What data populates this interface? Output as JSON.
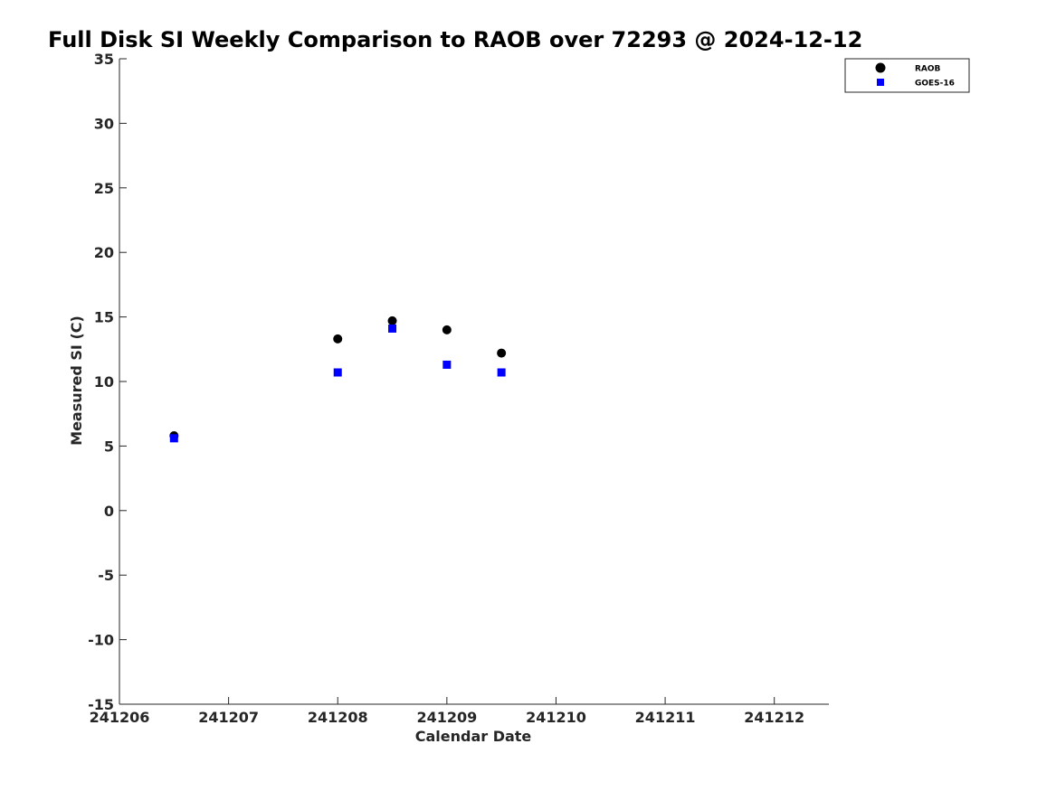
{
  "chart_data": {
    "type": "scatter",
    "title": "Full Disk SI Weekly Comparison to RAOB over 72293 @ 2024-12-12",
    "xlabel": "Calendar Date",
    "ylabel": "Measured SI (C)",
    "xlim": [
      "241206",
      "241212.5"
    ],
    "ylim": [
      -15,
      35
    ],
    "x_ticks": [
      "241206",
      "241207",
      "241208",
      "241209",
      "241210",
      "241211",
      "241212"
    ],
    "y_ticks": [
      "-15",
      "-10",
      "-5",
      "0",
      "5",
      "10",
      "15",
      "20",
      "25",
      "30",
      "35"
    ],
    "grid": false,
    "legend_position": "top-right",
    "series": [
      {
        "name": "RAOB",
        "marker": "circle",
        "color": "#000000",
        "x": [
          "241206.5",
          "241208",
          "241208.5",
          "241209",
          "241209.5"
        ],
        "y": [
          5.8,
          13.3,
          14.7,
          14.0,
          12.2
        ]
      },
      {
        "name": "GOES-16",
        "marker": "square",
        "color": "#0000ff",
        "x": [
          "241206.5",
          "241208",
          "241208.5",
          "241209",
          "241209.5"
        ],
        "y": [
          5.6,
          10.7,
          14.1,
          11.3,
          10.7
        ]
      }
    ]
  }
}
